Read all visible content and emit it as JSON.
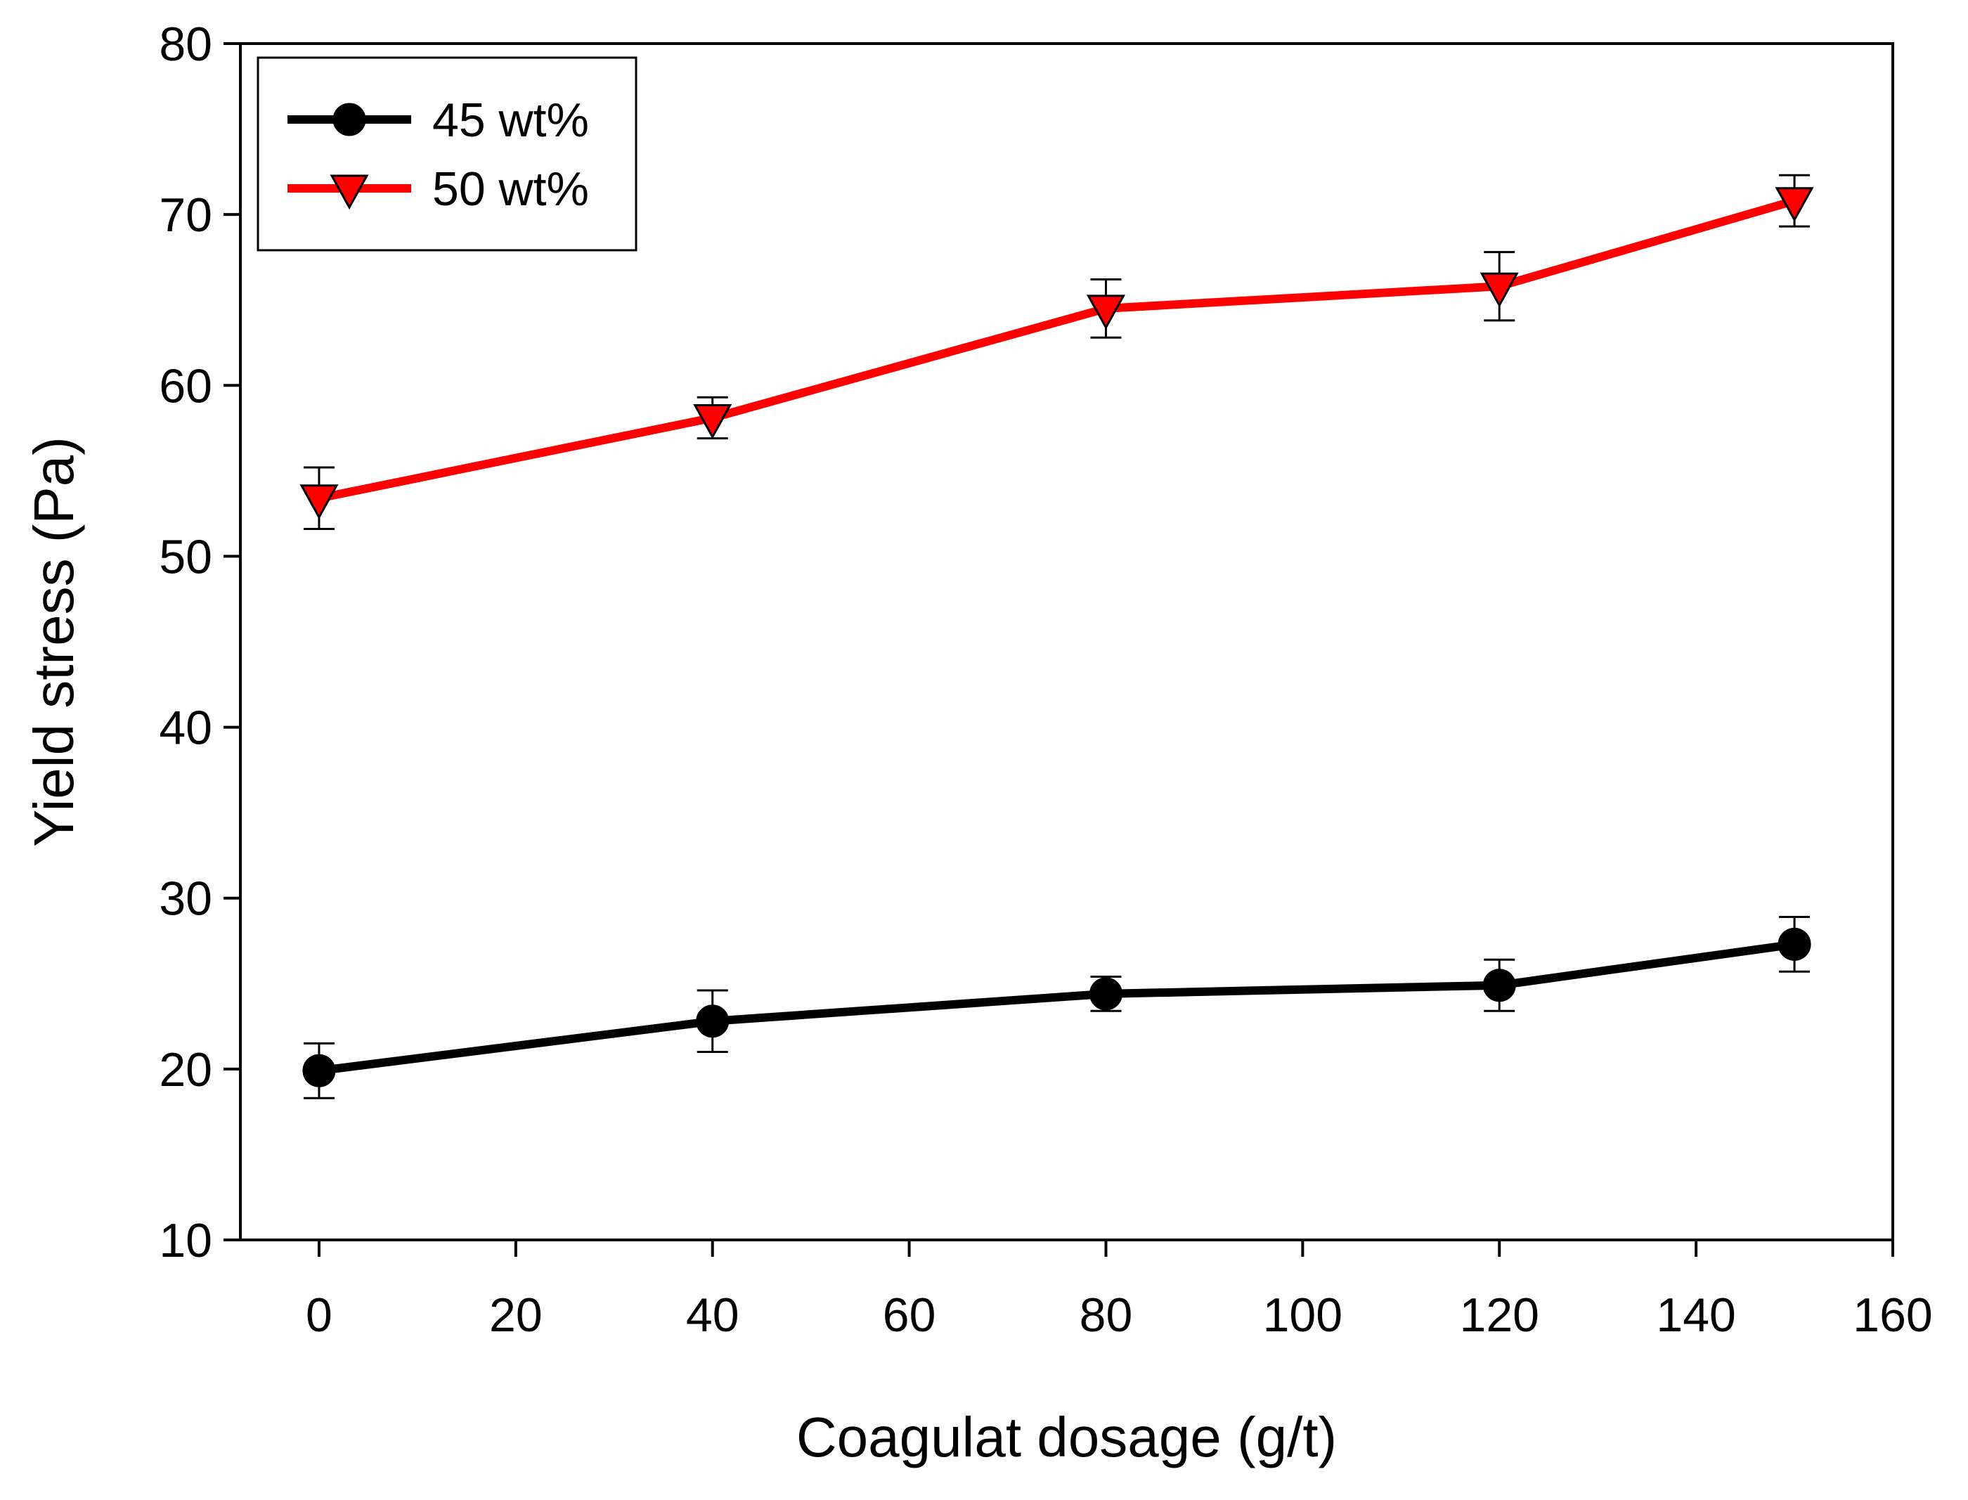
{
  "chart_data": {
    "type": "line",
    "title": "",
    "xlabel": "Coagulat dosage (g/t)",
    "ylabel": "Yield stress (Pa)",
    "xlim": [
      -8,
      160
    ],
    "ylim": [
      10,
      80
    ],
    "xticks": [
      0,
      20,
      40,
      60,
      80,
      100,
      120,
      140,
      160
    ],
    "yticks": [
      10,
      20,
      30,
      40,
      50,
      60,
      70,
      80
    ],
    "grid": false,
    "legend_position": "top-left",
    "series": [
      {
        "name": "45 wt%",
        "color": "#000000",
        "marker": "circle",
        "marker_fill": "#000000",
        "x": [
          0,
          40,
          80,
          120,
          150
        ],
        "y": [
          19.9,
          22.8,
          24.4,
          24.9,
          27.3
        ],
        "error": [
          1.6,
          1.8,
          1.0,
          1.5,
          1.6
        ]
      },
      {
        "name": "50 wt%",
        "color": "#ff0000",
        "marker": "triangle-down",
        "marker_fill": "#ff0000",
        "x": [
          0,
          40,
          80,
          120,
          150
        ],
        "y": [
          53.4,
          58.1,
          64.5,
          65.8,
          70.8
        ],
        "error": [
          1.8,
          1.2,
          1.7,
          2.0,
          1.5
        ]
      }
    ]
  }
}
